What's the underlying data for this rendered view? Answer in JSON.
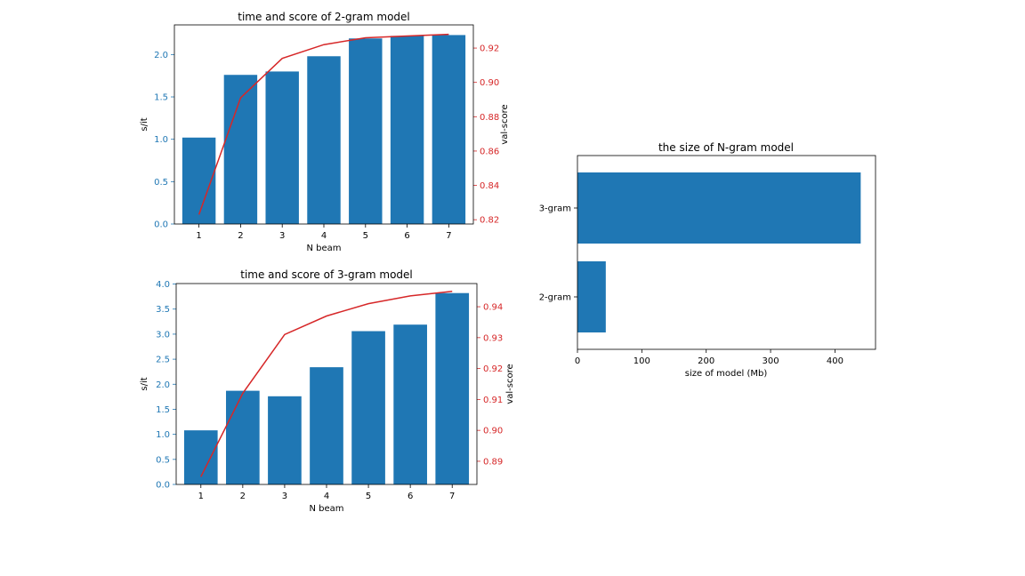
{
  "colors": {
    "bar": "#1f77b4",
    "line": "#d62728",
    "left_axis": "#1f77b4",
    "right_axis": "#d62728",
    "frame": "#000000"
  },
  "chart_data": [
    {
      "type": "bar",
      "title": "time and score of 2-gram model",
      "xlabel": "N beam",
      "ylabel": "s/it",
      "categories": [
        "1",
        "2",
        "3",
        "4",
        "5",
        "6",
        "7"
      ],
      "values": [
        1.02,
        1.76,
        1.8,
        1.98,
        2.19,
        2.22,
        2.23
      ],
      "ylim": [
        0,
        2.35
      ],
      "yticks": [
        0.0,
        0.5,
        1.0,
        1.5,
        2.0
      ],
      "ytick_labels": [
        "0.0",
        "0.5",
        "1.0",
        "1.5",
        "2.0"
      ],
      "secondary": {
        "type": "line",
        "ylabel": "val-score",
        "values": [
          0.823,
          0.891,
          0.914,
          0.922,
          0.926,
          0.927,
          0.928
        ],
        "ylim": [
          0.8175,
          0.9335
        ],
        "yticks": [
          0.82,
          0.84,
          0.86,
          0.88,
          0.9,
          0.92
        ],
        "ytick_labels": [
          "0.82",
          "0.84",
          "0.86",
          "0.88",
          "0.90",
          "0.92"
        ]
      }
    },
    {
      "type": "bar",
      "title": "time and score of 3-gram model",
      "xlabel": "N beam",
      "ylabel": "s/it",
      "categories": [
        "1",
        "2",
        "3",
        "4",
        "5",
        "6",
        "7"
      ],
      "values": [
        1.08,
        1.87,
        1.76,
        2.34,
        3.06,
        3.19,
        3.82
      ],
      "ylim": [
        0,
        4.01
      ],
      "yticks": [
        0.0,
        0.5,
        1.0,
        1.5,
        2.0,
        2.5,
        3.0,
        3.5,
        4.0
      ],
      "ytick_labels": [
        "0.0",
        "0.5",
        "1.0",
        "1.5",
        "2.0",
        "2.5",
        "3.0",
        "3.5",
        "4.0"
      ],
      "secondary": {
        "type": "line",
        "ylabel": "val-score",
        "values": [
          0.885,
          0.912,
          0.931,
          0.937,
          0.941,
          0.9435,
          0.945
        ],
        "ylim": [
          0.8825,
          0.9475
        ],
        "yticks": [
          0.89,
          0.9,
          0.91,
          0.92,
          0.93,
          0.94
        ],
        "ytick_labels": [
          "0.89",
          "0.90",
          "0.91",
          "0.92",
          "0.93",
          "0.94"
        ]
      }
    },
    {
      "type": "barh",
      "title": "the size of N-gram model",
      "xlabel": "size of model (Mb)",
      "ylabel": "",
      "categories": [
        "2-gram",
        "3-gram"
      ],
      "values": [
        44,
        440
      ],
      "xlim": [
        0,
        463
      ],
      "xticks": [
        0,
        100,
        200,
        300,
        400
      ],
      "xtick_labels": [
        "0",
        "100",
        "200",
        "300",
        "400"
      ]
    }
  ]
}
